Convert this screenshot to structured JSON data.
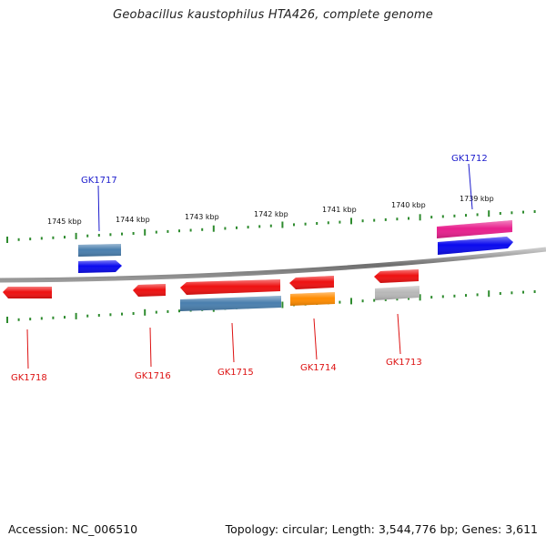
{
  "title": "Geobacillus kaustophilus HTA426, complete genome",
  "footer": {
    "accession": "Accession: NC_006510",
    "summary": "Topology: circular; Length: 3,544,776 bp; Genes: 3,611"
  },
  "colors": {
    "backbone": "#7a7a7a",
    "tick": "#2e8b2e",
    "label_top": "#1a1acc",
    "label_bottom": "#dd1111"
  },
  "scale_ticks": [
    "1745 kbp",
    "1744 kbp",
    "1743 kbp",
    "1742 kbp",
    "1741 kbp",
    "1740 kbp",
    "1739 kbp"
  ],
  "genes": {
    "labeled": [
      "GK1712",
      "GK1713",
      "GK1714",
      "GK1715",
      "GK1716",
      "GK1717",
      "GK1718"
    ]
  },
  "features": [
    {
      "name": "GK1718",
      "strand": "-",
      "color": "#ee1111"
    },
    {
      "name": "GK1717",
      "strand": "+",
      "color": "#0a0aee"
    },
    {
      "name": "GK1717 region",
      "strand": "+",
      "color": "#4a7fae"
    },
    {
      "name": "GK1716",
      "strand": "-",
      "color": "#ee1111"
    },
    {
      "name": "GK1715",
      "strand": "-",
      "color": "#ee1111"
    },
    {
      "name": "GK1715 region",
      "strand": "-",
      "color": "#4a7fae"
    },
    {
      "name": "GK1714",
      "strand": "-",
      "color": "#ee1111"
    },
    {
      "name": "GK1714 region",
      "strand": "-",
      "color": "#ff8c00"
    },
    {
      "name": "GK1713",
      "strand": "-",
      "color": "#ee1111"
    },
    {
      "name": "GK1713 region",
      "strand": "-",
      "color": "#b8b8b8"
    },
    {
      "name": "GK1712",
      "strand": "+",
      "color": "#0a0aee"
    },
    {
      "name": "GK1712 region",
      "strand": "+",
      "color": "#e8208e"
    }
  ]
}
